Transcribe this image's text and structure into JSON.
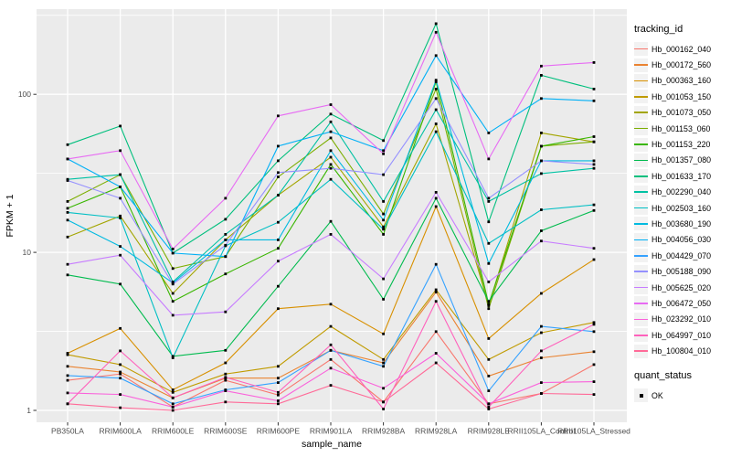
{
  "page": {
    "background": "#FFFFFF"
  },
  "chart_data": {
    "type": "line",
    "title": "",
    "xlabel": "sample_name",
    "ylabel": "FPKM + 1",
    "y_scale": "log10",
    "ylim": [
      1,
      320
    ],
    "y_ticks": [
      {
        "label": "1",
        "value": 1
      },
      {
        "label": "10",
        "value": 10
      },
      {
        "label": "100",
        "value": 100
      }
    ],
    "y_minor": [
      3.162,
      31.62,
      316.2
    ],
    "grid": true,
    "panel_bg": "#EBEBEB",
    "grid_color": "#FFFFFF",
    "tick_color": "#333333",
    "axis_text_color": "#4D4D4D",
    "point_marker": "square",
    "point_color": "#000000",
    "legend_position": "right",
    "categories": [
      "PB350LA",
      "RRIM600LA",
      "RRIM600LE",
      "RRIM600SE",
      "RRIM600PE",
      "RRIM901LA",
      "RRIM928BA",
      "RRIM928LA",
      "RRIM928LE",
      "RRII105LA_Control",
      "RRII105LA_Stressed"
    ],
    "series": [
      {
        "name": "Hb_000162_040",
        "color": "#F8766D",
        "values": [
          1.55,
          1.7,
          1.05,
          1.55,
          1.25,
          2.1,
          1.13,
          3.15,
          1.1,
          1.28,
          1.95
        ]
      },
      {
        "name": "Hb_000172_560",
        "color": "#EA8331",
        "values": [
          1.9,
          1.75,
          1.2,
          1.6,
          1.6,
          2.4,
          2.0,
          5.6,
          1.65,
          2.15,
          2.35
        ]
      },
      {
        "name": "Hb_000363_160",
        "color": "#D89000",
        "values": [
          2.3,
          3.3,
          1.35,
          2.0,
          4.4,
          4.7,
          3.05,
          19.5,
          2.85,
          5.5,
          9.0
        ]
      },
      {
        "name": "Hb_001053_150",
        "color": "#C09B00",
        "values": [
          2.25,
          1.95,
          1.3,
          1.7,
          1.9,
          3.4,
          2.1,
          5.8,
          2.1,
          3.1,
          3.6
        ]
      },
      {
        "name": "Hb_001073_050",
        "color": "#A3A500",
        "values": [
          12.5,
          17.0,
          5.5,
          12.0,
          23.0,
          40.0,
          14.5,
          65.0,
          4.6,
          57.0,
          50.0
        ]
      },
      {
        "name": "Hb_001153_060",
        "color": "#7CAE00",
        "values": [
          21.0,
          31.0,
          7.9,
          9.4,
          30.0,
          53.0,
          17.5,
          108.0,
          4.4,
          47.0,
          50.0
        ]
      },
      {
        "name": "Hb_001153_220",
        "color": "#39B600",
        "values": [
          19.0,
          26.0,
          4.9,
          7.3,
          10.6,
          36.0,
          13.0,
          120.0,
          4.7,
          47.0,
          54.0
        ]
      },
      {
        "name": "Hb_001357_080",
        "color": "#00BB4E",
        "values": [
          7.2,
          6.3,
          2.2,
          2.4,
          6.1,
          15.7,
          5.05,
          22.0,
          4.9,
          13.7,
          18.4
        ]
      },
      {
        "name": "Hb_001633_170",
        "color": "#00BF7D",
        "values": [
          48.0,
          63.0,
          9.9,
          16.2,
          38.0,
          75.0,
          51.0,
          280.0,
          15.6,
          132.0,
          108.0
        ]
      },
      {
        "name": "Hb_002290_040",
        "color": "#00C1A3",
        "values": [
          29.0,
          31.0,
          6.5,
          13.0,
          23.0,
          67.0,
          21.0,
          80.0,
          21.0,
          31.5,
          34.0
        ]
      },
      {
        "name": "Hb_002503_160",
        "color": "#00BFC4",
        "values": [
          17.9,
          16.5,
          2.15,
          11.0,
          15.5,
          29.0,
          14.0,
          58.0,
          11.4,
          18.6,
          20.0
        ]
      },
      {
        "name": "Hb_003680_190",
        "color": "#00BAE0",
        "values": [
          16.0,
          10.9,
          6.4,
          12.0,
          12.0,
          44.0,
          16.0,
          123.0,
          8.5,
          38.0,
          38.0
        ]
      },
      {
        "name": "Hb_004056_030",
        "color": "#00B0F6",
        "values": [
          39.0,
          26.0,
          9.9,
          9.4,
          47.0,
          58.0,
          44.0,
          176.0,
          57.0,
          94.0,
          91.0
        ]
      },
      {
        "name": "Hb_004429_070",
        "color": "#35A2FF",
        "values": [
          1.66,
          1.6,
          1.1,
          1.35,
          1.5,
          2.4,
          1.9,
          8.4,
          1.33,
          3.4,
          3.15
        ]
      },
      {
        "name": "Hb_005188_090",
        "color": "#9590FF",
        "values": [
          28.5,
          22.0,
          6.3,
          11.1,
          32.0,
          34.0,
          31.0,
          94.0,
          22.0,
          38.0,
          36.0
        ]
      },
      {
        "name": "Hb_005625_020",
        "color": "#C77CFF",
        "values": [
          8.4,
          9.6,
          4.0,
          4.2,
          8.8,
          13.0,
          6.8,
          24.0,
          6.5,
          11.8,
          10.6
        ]
      },
      {
        "name": "Hb_006472_050",
        "color": "#E76BF3",
        "values": [
          39.0,
          44.0,
          10.5,
          22.0,
          73.0,
          86.0,
          42.0,
          247.0,
          39.0,
          151.0,
          159.0
        ]
      },
      {
        "name": "Hb_023292_010",
        "color": "#FA62DB",
        "values": [
          1.29,
          1.26,
          1.05,
          1.33,
          1.15,
          1.85,
          1.38,
          2.3,
          1.1,
          1.5,
          1.52
        ]
      },
      {
        "name": "Hb_064997_010",
        "color": "#FF62BC",
        "values": [
          1.1,
          2.38,
          1.2,
          1.62,
          1.3,
          2.6,
          1.02,
          4.9,
          1.05,
          2.38,
          3.5
        ]
      },
      {
        "name": "Hb_100804_010",
        "color": "#FF6A98",
        "values": [
          1.1,
          1.04,
          1.0,
          1.13,
          1.1,
          1.44,
          1.13,
          2.0,
          1.02,
          1.28,
          1.26
        ]
      }
    ],
    "legend": {
      "tracking_title": "tracking_id",
      "quant_title": "quant_status",
      "quant_items": [
        {
          "label": "OK",
          "marker": "square",
          "color": "#000000"
        }
      ]
    }
  }
}
